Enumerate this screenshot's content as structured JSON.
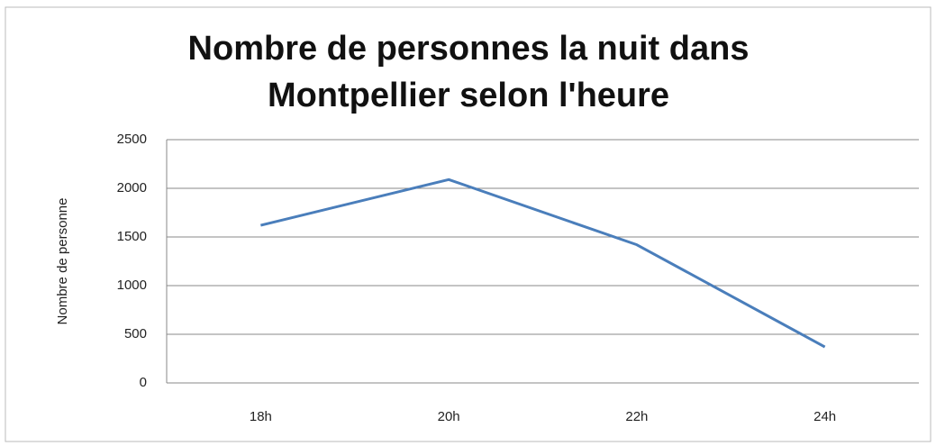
{
  "chart_data": {
    "type": "line",
    "title": "Nombre de personnes la nuit dans Montpellier selon l'heure",
    "ylabel": "Nombre de personne",
    "categories": [
      "18h",
      "20h",
      "22h",
      "24h"
    ],
    "series": [
      {
        "name": "Nombre de personne",
        "color": "#4a7ebb",
        "values": [
          1620,
          2090,
          1420,
          370
        ]
      }
    ],
    "ylim": [
      0,
      2500
    ],
    "yticks": [
      0,
      500,
      1000,
      1500,
      2000,
      2500
    ],
    "grid": true
  }
}
